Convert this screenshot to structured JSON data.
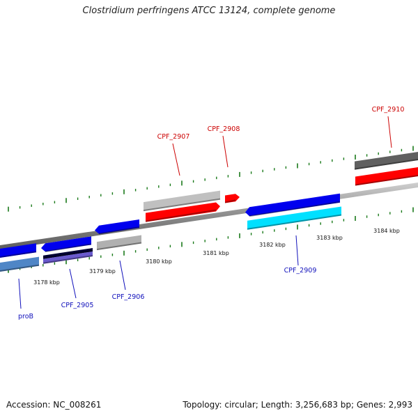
{
  "title": "Clostridium perfringens ATCC 13124, complete genome",
  "footer": {
    "accession": "Accession: NC_008261",
    "summary": "Topology: circular; Length: 3,256,683 bp; Genes: 2,993"
  },
  "colors": {
    "forward_label": "#cc0000",
    "reverse_label": "#1010bb",
    "backbone": "#808080",
    "tick": "#1a7a1a"
  },
  "ticks": [
    {
      "label": "3178 kbp"
    },
    {
      "label": "3179 kbp"
    },
    {
      "label": "3180 kbp"
    },
    {
      "label": "3181 kbp"
    },
    {
      "label": "3182 kbp"
    },
    {
      "label": "3183 kbp"
    },
    {
      "label": "3184 kbp"
    }
  ],
  "genes": [
    {
      "label": "proB",
      "strand": "reverse",
      "color": "#4f86c6"
    },
    {
      "label": "CPF_2905",
      "strand": "reverse",
      "color": "#6a5acd"
    },
    {
      "label": "CPF_2906",
      "strand": "reverse",
      "color": "#b0b0b0"
    },
    {
      "label": "CPF_2907",
      "strand": "forward",
      "color": "#c0c0c0"
    },
    {
      "label": "CPF_2908",
      "strand": "forward",
      "color": "#ff0000"
    },
    {
      "label": "CPF_2909",
      "strand": "reverse",
      "color": "#00e0ff"
    },
    {
      "label": "CPF_2910",
      "strand": "forward",
      "color": "#606060"
    }
  ]
}
